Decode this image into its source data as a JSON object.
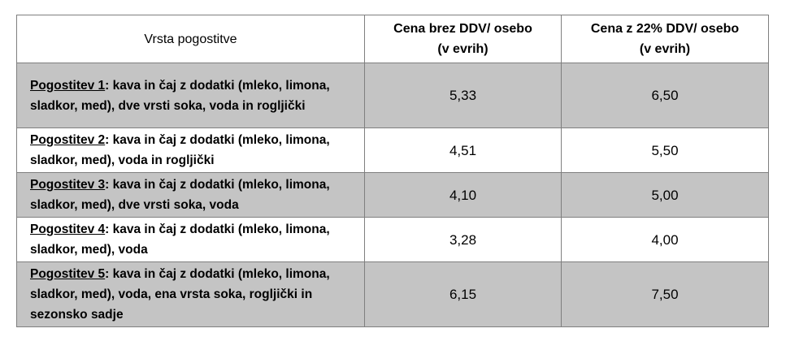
{
  "table": {
    "header": [
      "Vrsta pogostitve",
      "Cena brez DDV/ osebo\n(v evrih)",
      "Cena z 22% DDV/ osebo\n(v evrih)"
    ],
    "rows": [
      {
        "label": "Pogostitev 1",
        "description": ": kava in čaj z dodatki (mleko, limona, sladkor, med), dve vrsti soka, voda in rogljički",
        "price": "5,33",
        "price_vat": "6,50"
      },
      {
        "label": "Pogostitev 2",
        "description": ": kava in čaj z dodatki (mleko, limona, sladkor, med), voda in rogljički",
        "price": "4,51",
        "price_vat": "5,50"
      },
      {
        "label": "Pogostitev 3",
        "description": ": kava in čaj z dodatki (mleko, limona, sladkor, med), dve vrsti soka, voda",
        "price": "4,10",
        "price_vat": "5,00"
      },
      {
        "label": "Pogostitev 4",
        "description": ": kava in čaj z dodatki (mleko, limona, sladkor, med), voda",
        "price": "3,28",
        "price_vat": "4,00"
      },
      {
        "label": "Pogostitev 5",
        "description": ": kava in čaj z dodatki (mleko, limona, sladkor, med), voda, ena vrsta soka, rogljički in sezonsko sadje",
        "price": "6,15",
        "price_vat": "7,50"
      }
    ]
  }
}
